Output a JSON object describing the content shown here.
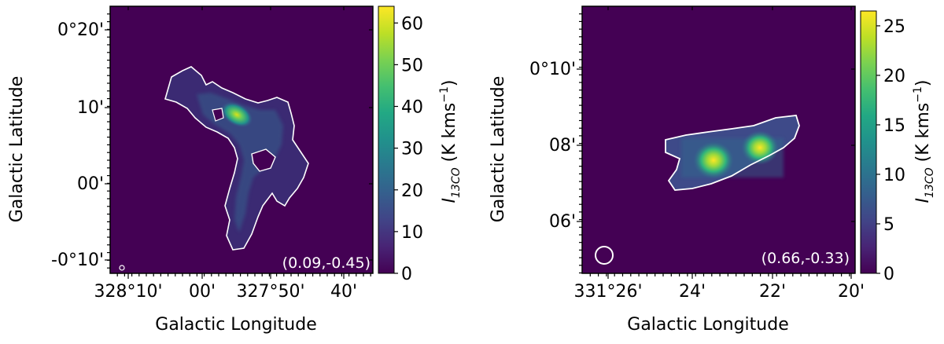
{
  "chart_data": [
    {
      "type": "heatmap",
      "panel": "left",
      "title": "",
      "xlabel": "Galactic Longitude",
      "ylabel": "Galactic Latitude",
      "x_ticks": [
        "328°10'",
        "00'",
        "327°50'",
        "40'"
      ],
      "y_ticks": [
        "0°20'",
        "10'",
        "00'",
        "-0°10'"
      ],
      "colorbar": {
        "label_main": "I",
        "label_sub": "13CO",
        "label_unit": " (K kms",
        "label_exp": "−1",
        "label_close": ")",
        "ticks": [
          "0",
          "10",
          "20",
          "30",
          "40",
          "50",
          "60"
        ],
        "range": [
          0,
          64
        ],
        "colormap": "viridis"
      },
      "annotation": "(0.09,-0.45)",
      "background_color": "#440154",
      "contour_color": "#ffffff",
      "peak_value": 62
    },
    {
      "type": "heatmap",
      "panel": "right",
      "title": "",
      "xlabel": "Galactic Longitude",
      "ylabel": "Galactic Latitude",
      "x_ticks": [
        "331°26'",
        "24'",
        "22'",
        "20'"
      ],
      "y_ticks": [
        "0°10'",
        "08'",
        "06'"
      ],
      "colorbar": {
        "label_main": "I",
        "label_sub": "13CO",
        "label_unit": " (K kms",
        "label_exp": "−1",
        "label_close": ")",
        "ticks": [
          "0",
          "5",
          "10",
          "15",
          "20",
          "25"
        ],
        "range": [
          0,
          26.5
        ],
        "colormap": "viridis"
      },
      "annotation": "(0.66,-0.33)",
      "background_color": "#440154",
      "contour_color": "#ffffff",
      "peak_value": 26
    }
  ]
}
